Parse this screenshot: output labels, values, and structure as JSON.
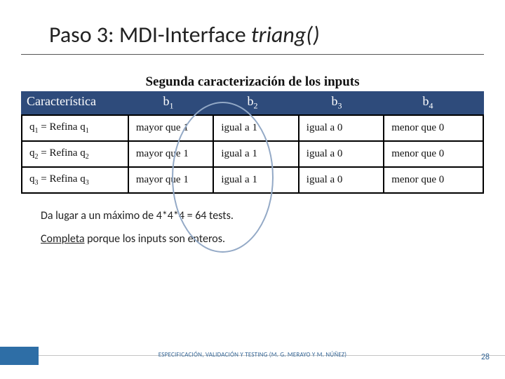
{
  "title_plain": "Paso 3: MDI-Interface ",
  "title_italic": "triang()",
  "subcaption": "Segunda caracterización de los inputs",
  "header": {
    "col0": "Característica",
    "b_base": "b"
  },
  "rows": [
    {
      "char_lhs_base": "q",
      "char_lhs_sub": "1",
      "char_eq": " = Refina q",
      "char_rhs_sub": "1",
      "b1": "mayor que 1",
      "b2": "igual a 1",
      "b3": "igual a 0",
      "b4": "menor que 0"
    },
    {
      "char_lhs_base": "q",
      "char_lhs_sub": "2",
      "char_eq": " = Refina q",
      "char_rhs_sub": "2",
      "b1": "mayor que 1",
      "b2": "igual a 1",
      "b3": "igual a 0",
      "b4": "menor que 0"
    },
    {
      "char_lhs_base": "q",
      "char_lhs_sub": "3",
      "char_eq": " = Refina q",
      "char_rhs_sub": "3",
      "b1": "mayor que 1",
      "b2": "igual a 1",
      "b3": "igual a 0",
      "b4": "menor que 0"
    }
  ],
  "note1": "Da lugar a un máximo de 4*4*4 = 64 tests.",
  "note2_u": "Completa",
  "note2_rest": " porque los inputs son enteros.",
  "footer": "ESPECIFICACIÓN, VALIDACIÓN Y TESTING (M. G. MERAYO Y M. NÚÑEZ)",
  "page": "28",
  "subs": {
    "one": "1",
    "two": "2",
    "three": "3",
    "four": "4"
  }
}
